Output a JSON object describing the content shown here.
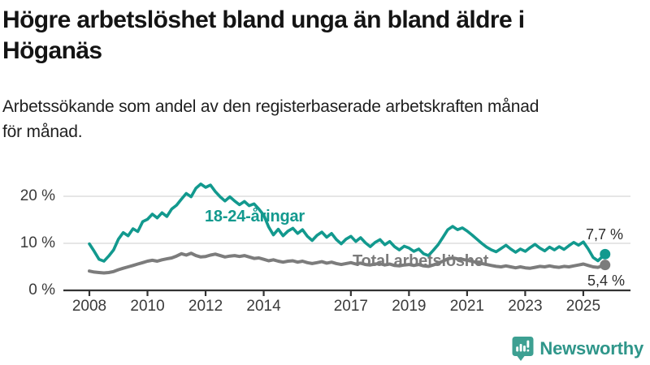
{
  "title": "Högre arbetslöshet bland unga än bland äldre i\nHöganäs",
  "subtitle": "Arbetssökande som andel av den registerbaserade arbetskraften månad\nför månad.",
  "branding": {
    "logo_text": "Newsworthy",
    "logo_icon": "bar-chart-speech-bubble-icon",
    "logo_color": "#3da092",
    "logo_text_color": "#2f968a"
  },
  "colors": {
    "youth_line": "#12998e",
    "total_line": "#7c7c7c",
    "grid": "#d8d8d8",
    "axis": "#333333",
    "title_text": "#141414",
    "tick_text": "#3a3a3a"
  },
  "chart_data": {
    "type": "line",
    "title": "",
    "xlabel": "",
    "ylabel": "",
    "unit": "%",
    "grid": true,
    "legend_position": "inline-labels-on-lines",
    "x_unit": "decimal-year, monthly cadence sampled every 2 months",
    "x_start": 2008.0,
    "x_step": 0.1667,
    "x_last": 2025.75,
    "xlim": [
      2007.1,
      2026.6
    ],
    "ylim": [
      0,
      26
    ],
    "x_ticks": [
      2008,
      2010,
      2012,
      2014,
      2017,
      2019,
      2021,
      2023,
      2025
    ],
    "y_ticks": [
      {
        "value": 0,
        "label": "0 %"
      },
      {
        "value": 10,
        "label": "10 %"
      },
      {
        "value": 20,
        "label": "20 %"
      }
    ],
    "series": [
      {
        "name": "18-24-åringar",
        "color": "#12998e",
        "end_label": "7,7 %",
        "end_value": 7.7,
        "values": [
          9.9,
          8.3,
          6.6,
          6.2,
          7.3,
          8.6,
          10.9,
          12.3,
          11.6,
          13.1,
          12.5,
          14.6,
          15.1,
          16.2,
          15.4,
          16.5,
          15.7,
          17.3,
          18.1,
          19.4,
          20.6,
          19.9,
          21.7,
          22.6,
          21.9,
          22.4,
          21.0,
          19.9,
          19.0,
          19.9,
          19.0,
          18.2,
          18.9,
          18.0,
          18.4,
          17.3,
          16.0,
          13.5,
          11.8,
          13.0,
          11.6,
          12.6,
          13.2,
          12.1,
          12.9,
          11.5,
          10.6,
          11.7,
          12.4,
          11.3,
          12.1,
          10.8,
          9.9,
          10.9,
          11.5,
          10.4,
          11.2,
          10.1,
          9.3,
          10.2,
          10.8,
          9.7,
          10.4,
          9.3,
          8.6,
          9.4,
          9.0,
          8.3,
          8.8,
          7.8,
          7.4,
          8.5,
          9.7,
          11.3,
          12.9,
          13.6,
          12.9,
          13.3,
          12.6,
          11.8,
          10.9,
          10.0,
          9.2,
          8.6,
          8.2,
          8.9,
          9.6,
          8.8,
          8.1,
          8.8,
          8.3,
          9.1,
          9.8,
          9.0,
          8.4,
          9.2,
          8.6,
          9.3,
          8.7,
          9.5,
          10.2,
          9.6,
          10.3,
          8.8,
          7.0,
          6.3,
          7.7
        ]
      },
      {
        "name": "Total arbetslöshet",
        "color": "#7c7c7c",
        "end_label": "5,4 %",
        "end_value": 5.4,
        "values": [
          4.1,
          3.9,
          3.8,
          3.7,
          3.8,
          4.0,
          4.4,
          4.7,
          5.0,
          5.3,
          5.6,
          5.9,
          6.2,
          6.4,
          6.2,
          6.5,
          6.7,
          6.9,
          7.3,
          7.8,
          7.5,
          7.9,
          7.4,
          7.1,
          7.2,
          7.5,
          7.7,
          7.4,
          7.1,
          7.3,
          7.4,
          7.2,
          7.4,
          7.1,
          6.8,
          6.9,
          6.6,
          6.3,
          6.5,
          6.2,
          6.0,
          6.2,
          6.3,
          6.0,
          6.2,
          5.9,
          5.7,
          5.9,
          6.1,
          5.8,
          6.0,
          5.7,
          5.5,
          5.7,
          5.9,
          5.6,
          5.8,
          5.5,
          5.4,
          5.6,
          5.7,
          5.4,
          5.6,
          5.3,
          5.2,
          5.4,
          5.5,
          5.3,
          5.5,
          5.2,
          5.1,
          5.4,
          5.8,
          6.2,
          6.7,
          6.9,
          6.7,
          6.6,
          6.4,
          6.2,
          5.9,
          5.7,
          5.5,
          5.3,
          5.1,
          5.0,
          5.2,
          5.0,
          4.8,
          5.0,
          4.8,
          4.7,
          4.9,
          5.1,
          5.0,
          5.2,
          5.0,
          4.9,
          5.1,
          5.0,
          5.2,
          5.4,
          5.6,
          5.3,
          5.0,
          4.9,
          5.4
        ]
      }
    ]
  }
}
